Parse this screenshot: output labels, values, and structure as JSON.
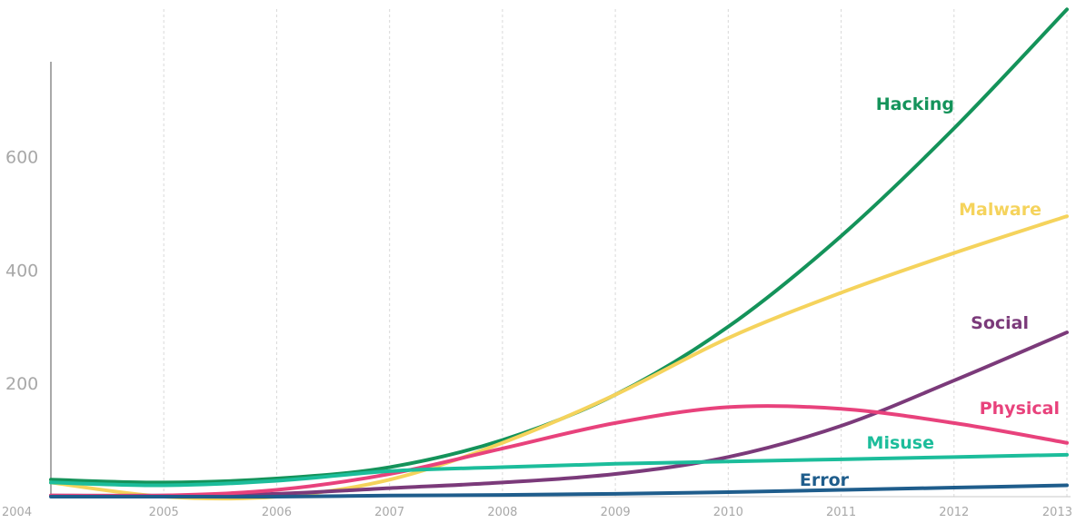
{
  "chart_data": {
    "type": "line",
    "x": [
      "2004",
      "2005",
      "2006",
      "2007",
      "2008",
      "2009",
      "2010",
      "2011",
      "2012",
      "2013"
    ],
    "xlim": [
      2004,
      2013
    ],
    "ylim": [
      0,
      750
    ],
    "yticks": [
      200,
      400,
      600
    ],
    "grid": "vertical",
    "series": [
      {
        "name": "Hacking",
        "color": "#14935a",
        "values": [
          30,
          25,
          32,
          52,
          100,
          180,
          300,
          460,
          650,
          860
        ]
      },
      {
        "name": "Malware",
        "color": "#f5d35c",
        "values": [
          25,
          0,
          0,
          30,
          95,
          180,
          280,
          360,
          430,
          495
        ]
      },
      {
        "name": "Social",
        "color": "#7b3a7a",
        "values": [
          2,
          2,
          5,
          15,
          25,
          40,
          70,
          125,
          205,
          290
        ]
      },
      {
        "name": "Physical",
        "color": "#e8427c",
        "values": [
          2,
          2,
          12,
          40,
          85,
          130,
          158,
          155,
          130,
          95
        ]
      },
      {
        "name": "Misuse",
        "color": "#1cbd9b",
        "values": [
          25,
          20,
          28,
          45,
          52,
          58,
          62,
          66,
          70,
          74
        ]
      },
      {
        "name": "Error",
        "color": "#1f5d8c",
        "values": [
          0,
          0,
          0,
          2,
          3,
          5,
          8,
          12,
          16,
          20
        ]
      }
    ]
  }
}
